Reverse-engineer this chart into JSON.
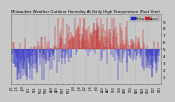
{
  "title": "Milwaukee Weather Outdoor Humidity\nAt Daily High\nTemperature\n(Past Year)",
  "background_color": "#c8c8c8",
  "plot_bg_color": "#c8c8c8",
  "grid_color": "#aaaaaa",
  "bar_color_above": "#cc2222",
  "bar_color_below": "#2222cc",
  "ylim": [
    0.0,
    1.0
  ],
  "ytick_vals": [
    0.1,
    0.2,
    0.3,
    0.4,
    0.5,
    0.6,
    0.7,
    0.8,
    0.9
  ],
  "ytick_labels": [
    "1",
    "2",
    "3",
    "4",
    "5",
    "6",
    "7",
    "8",
    "9"
  ],
  "n_points": 365,
  "seed": 42,
  "legend_colors": [
    "#2222cc",
    "#cc2222"
  ],
  "legend_labels": [
    "Below",
    "Above"
  ]
}
